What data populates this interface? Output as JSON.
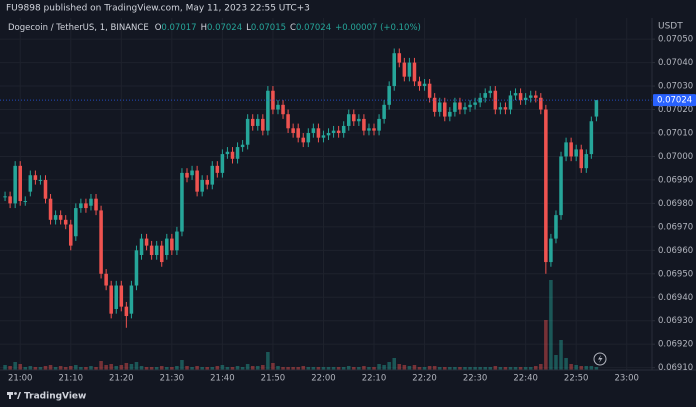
{
  "header": "FU9898 published on TradingView.com, May 11, 2023 22:55 UTC+3",
  "footer": "TradingView",
  "chart_data": {
    "type": "candlestick",
    "title": "Dogecoin / TetherUS, 1, BINANCE",
    "legend": {
      "open_label": "O",
      "high_label": "H",
      "low_label": "L",
      "close_label": "C",
      "change": "+0.00007 (+0.10%)"
    },
    "currency": "USDT",
    "up_color": "#26a69a",
    "down_color": "#ef5350",
    "grid": true,
    "x": [
      "20:57",
      "20:58",
      "20:59",
      "21:00",
      "21:01",
      "21:02",
      "21:03",
      "21:04",
      "21:05",
      "21:06",
      "21:07",
      "21:08",
      "21:09",
      "21:10",
      "21:11",
      "21:12",
      "21:13",
      "21:14",
      "21:15",
      "21:16",
      "21:17",
      "21:18",
      "21:19",
      "21:20",
      "21:21",
      "21:22",
      "21:23",
      "21:24",
      "21:25",
      "21:26",
      "21:27",
      "21:28",
      "21:29",
      "21:30",
      "21:31",
      "21:32",
      "21:33",
      "21:34",
      "21:35",
      "21:36",
      "21:37",
      "21:38",
      "21:39",
      "21:40",
      "21:41",
      "21:42",
      "21:43",
      "21:44",
      "21:45",
      "21:46",
      "21:47",
      "21:48",
      "21:49",
      "21:50",
      "21:51",
      "21:52",
      "21:53",
      "21:54",
      "21:55",
      "21:56",
      "21:57",
      "21:58",
      "21:59",
      "22:00",
      "22:01",
      "22:02",
      "22:03",
      "22:04",
      "22:05",
      "22:06",
      "22:07",
      "22:08",
      "22:09",
      "22:10",
      "22:11",
      "22:12",
      "22:13",
      "22:14",
      "22:15",
      "22:16",
      "22:17",
      "22:18",
      "22:19",
      "22:20",
      "22:21",
      "22:22",
      "22:23",
      "22:24",
      "22:25",
      "22:26",
      "22:27",
      "22:28",
      "22:29",
      "22:30",
      "22:31",
      "22:32",
      "22:33",
      "22:34",
      "22:35",
      "22:36",
      "22:37",
      "22:38",
      "22:39",
      "22:40",
      "22:41",
      "22:42",
      "22:43",
      "22:44",
      "22:45",
      "22:46",
      "22:47",
      "22:48",
      "22:49",
      "22:50",
      "22:51",
      "22:52",
      "22:53",
      "22:54"
    ],
    "open": [
      0.06983,
      0.06983,
      0.0698,
      0.06996,
      0.06981,
      0.06985,
      0.06992,
      0.0699,
      0.0699,
      0.06982,
      0.06973,
      0.06975,
      0.06973,
      0.06971,
      0.06966,
      0.06978,
      0.0698,
      0.06979,
      0.06982,
      0.06977,
      0.0695,
      0.06945,
      0.06935,
      0.06945,
      0.06936,
      0.06933,
      0.06945,
      0.06958,
      0.06965,
      0.06962,
      0.06958,
      0.06962,
      0.06958,
      0.06965,
      0.0696,
      0.06968,
      0.06993,
      0.06992,
      0.06994,
      0.06985,
      0.0699,
      0.06988,
      0.06996,
      0.06993,
      0.07001,
      0.07002,
      0.06999,
      0.07004,
      0.07005,
      0.07016,
      0.07013,
      0.07016,
      0.07011,
      0.07028,
      0.0702,
      0.07022,
      0.07018,
      0.07012,
      0.07012,
      0.07008,
      0.07006,
      0.0701,
      0.07012,
      0.07008,
      0.07009,
      0.0701,
      0.07011,
      0.0701,
      0.07013,
      0.07018,
      0.07015,
      0.07016,
      0.07011,
      0.07012,
      0.07011,
      0.07016,
      0.07022,
      0.0703,
      0.07044,
      0.0704,
      0.07034,
      0.0704,
      0.07032,
      0.0703,
      0.07031,
      0.07025,
      0.07019,
      0.07023,
      0.07017,
      0.07019,
      0.07023,
      0.0702,
      0.07021,
      0.07022,
      0.07023,
      0.07025,
      0.07027,
      0.07028,
      0.0702,
      0.07021,
      0.0702,
      0.07026,
      0.07027,
      0.07024,
      0.07025,
      0.07026,
      0.07025,
      0.0702,
      0.06955,
      0.06965,
      0.06975,
      0.07,
      0.07006,
      0.07,
      0.07003,
      0.06995,
      0.07001,
      0.07017
    ],
    "high": [
      0.06985,
      0.06985,
      0.06998,
      0.06998,
      0.06983,
      0.06994,
      0.06994,
      0.06992,
      0.06992,
      0.06984,
      0.06977,
      0.06977,
      0.06975,
      0.06973,
      0.0698,
      0.06982,
      0.06982,
      0.06984,
      0.06984,
      0.06979,
      0.06952,
      0.06947,
      0.06947,
      0.06947,
      0.06938,
      0.06947,
      0.06962,
      0.06967,
      0.06967,
      0.06964,
      0.06964,
      0.06964,
      0.06967,
      0.06967,
      0.0697,
      0.06995,
      0.06995,
      0.06996,
      0.06996,
      0.06992,
      0.06992,
      0.06998,
      0.06998,
      0.07003,
      0.07004,
      0.07004,
      0.07006,
      0.07007,
      0.07018,
      0.07018,
      0.07018,
      0.07018,
      0.0703,
      0.0703,
      0.07024,
      0.07024,
      0.0702,
      0.07014,
      0.07014,
      0.0701,
      0.07012,
      0.07014,
      0.07014,
      0.07011,
      0.07012,
      0.07013,
      0.07013,
      0.07015,
      0.0702,
      0.0702,
      0.07018,
      0.07018,
      0.07014,
      0.07014,
      0.07018,
      0.07024,
      0.07032,
      0.07046,
      0.07046,
      0.07042,
      0.07042,
      0.07042,
      0.07034,
      0.07033,
      0.07033,
      0.07027,
      0.07025,
      0.07025,
      0.07021,
      0.07025,
      0.07025,
      0.07023,
      0.07024,
      0.07025,
      0.07027,
      0.07029,
      0.0703,
      0.0703,
      0.07023,
      0.07023,
      0.07028,
      0.07029,
      0.07029,
      0.07027,
      0.07028,
      0.07028,
      0.07027,
      0.07022,
      0.06967,
      0.06977,
      0.07002,
      0.07008,
      0.07008,
      0.07005,
      0.07005,
      0.07003,
      0.07017,
      0.07024
    ],
    "low": [
      0.06981,
      0.06978,
      0.06978,
      0.06979,
      0.06979,
      0.06983,
      0.06988,
      0.06988,
      0.0698,
      0.06971,
      0.06971,
      0.06971,
      0.06969,
      0.0696,
      0.06964,
      0.06976,
      0.06976,
      0.06977,
      0.06975,
      0.06948,
      0.06943,
      0.06931,
      0.06933,
      0.06934,
      0.06927,
      0.06931,
      0.06943,
      0.06956,
      0.0696,
      0.06956,
      0.06956,
      0.06953,
      0.06956,
      0.06958,
      0.06958,
      0.06966,
      0.06989,
      0.0699,
      0.06983,
      0.06983,
      0.06986,
      0.06986,
      0.06991,
      0.06991,
      0.06999,
      0.06997,
      0.06997,
      0.07002,
      0.07003,
      0.07011,
      0.07011,
      0.07009,
      0.07009,
      0.07018,
      0.07018,
      0.07016,
      0.0701,
      0.07008,
      0.07006,
      0.07004,
      0.07004,
      0.07008,
      0.07006,
      0.07006,
      0.07007,
      0.07008,
      0.07008,
      0.07008,
      0.07011,
      0.07013,
      0.07013,
      0.07009,
      0.07009,
      0.07009,
      0.07009,
      0.07014,
      0.0702,
      0.07028,
      0.07038,
      0.07032,
      0.07032,
      0.0703,
      0.07028,
      0.07028,
      0.07023,
      0.07017,
      0.07017,
      0.07015,
      0.07015,
      0.07017,
      0.07018,
      0.07018,
      0.07019,
      0.0702,
      0.07021,
      0.07023,
      0.07025,
      0.07018,
      0.07018,
      0.07018,
      0.07018,
      0.07024,
      0.07022,
      0.07022,
      0.07023,
      0.07023,
      0.07018,
      0.0695,
      0.06953,
      0.06963,
      0.06973,
      0.06998,
      0.06998,
      0.06998,
      0.06993,
      0.06993,
      0.06999,
      0.07015
    ],
    "close": [
      0.06983,
      0.0698,
      0.06996,
      0.06981,
      0.06981,
      0.06992,
      0.0699,
      0.0699,
      0.06982,
      0.06973,
      0.06975,
      0.06973,
      0.06971,
      0.06962,
      0.06978,
      0.0698,
      0.06978,
      0.06982,
      0.06977,
      0.0695,
      0.06945,
      0.06933,
      0.06945,
      0.06936,
      0.06932,
      0.06945,
      0.0696,
      0.06965,
      0.06962,
      0.06958,
      0.06962,
      0.06955,
      0.06965,
      0.0696,
      0.06968,
      0.06993,
      0.06991,
      0.06994,
      0.06985,
      0.0699,
      0.06988,
      0.06996,
      0.06993,
      0.07001,
      0.07002,
      0.06999,
      0.07004,
      0.07005,
      0.07016,
      0.07013,
      0.07016,
      0.07011,
      0.07028,
      0.0702,
      0.07022,
      0.07018,
      0.07012,
      0.0701,
      0.07008,
      0.07006,
      0.0701,
      0.07012,
      0.07008,
      0.07009,
      0.0701,
      0.07011,
      0.0701,
      0.07013,
      0.07018,
      0.07015,
      0.07016,
      0.07011,
      0.07012,
      0.07011,
      0.07016,
      0.07022,
      0.0703,
      0.07044,
      0.0704,
      0.07034,
      0.0704,
      0.07032,
      0.0703,
      0.07031,
      0.07025,
      0.07019,
      0.07023,
      0.07017,
      0.07019,
      0.07023,
      0.0702,
      0.07021,
      0.07022,
      0.07023,
      0.07025,
      0.07027,
      0.07028,
      0.0702,
      0.07021,
      0.0702,
      0.07026,
      0.07027,
      0.07024,
      0.07025,
      0.07026,
      0.07025,
      0.0702,
      0.06955,
      0.06965,
      0.06975,
      0.07,
      0.07006,
      0.07,
      0.07003,
      0.06995,
      0.07001,
      0.07015,
      0.07024
    ],
    "volume": [
      5,
      4,
      8,
      6,
      3,
      4,
      3,
      3,
      4,
      5,
      3,
      4,
      3,
      4,
      5,
      3,
      3,
      4,
      3,
      9,
      5,
      6,
      4,
      5,
      7,
      6,
      8,
      4,
      3,
      3,
      3,
      4,
      3,
      3,
      4,
      10,
      4,
      3,
      4,
      3,
      3,
      3,
      4,
      5,
      3,
      3,
      4,
      3,
      6,
      4,
      4,
      5,
      18,
      7,
      4,
      3,
      3,
      3,
      3,
      4,
      3,
      3,
      3,
      3,
      3,
      3,
      3,
      3,
      4,
      3,
      3,
      4,
      3,
      3,
      6,
      5,
      8,
      12,
      6,
      5,
      4,
      5,
      3,
      3,
      4,
      4,
      3,
      3,
      3,
      3,
      3,
      3,
      3,
      3,
      3,
      3,
      3,
      4,
      3,
      3,
      3,
      3,
      3,
      3,
      3,
      4,
      6,
      50,
      90,
      15,
      30,
      12,
      6,
      5,
      4,
      4,
      4,
      3
    ],
    "xlim": [
      "20:56",
      "23:05"
    ],
    "xticks": [
      "21:00",
      "21:10",
      "21:20",
      "21:30",
      "21:40",
      "21:50",
      "22:00",
      "22:10",
      "22:20",
      "22:30",
      "22:40",
      "22:50",
      "23:00"
    ],
    "ylim": [
      0.06909,
      0.07059
    ],
    "yticks": [
      {
        "value": 0.0691,
        "label": "0.06910"
      },
      {
        "value": 0.0692,
        "label": "0.06920"
      },
      {
        "value": 0.0693,
        "label": "0.06930"
      },
      {
        "value": 0.0694,
        "label": "0.06940"
      },
      {
        "value": 0.0695,
        "label": "0.06950"
      },
      {
        "value": 0.0696,
        "label": "0.06960"
      },
      {
        "value": 0.0697,
        "label": "0.06970"
      },
      {
        "value": 0.0698,
        "label": "0.06980"
      },
      {
        "value": 0.0699,
        "label": "0.06990"
      },
      {
        "value": 0.07,
        "label": "0.07000"
      },
      {
        "value": 0.0701,
        "label": "0.07010"
      },
      {
        "value": 0.0702,
        "label": "0.07020"
      },
      {
        "value": 0.0703,
        "label": "0.07030"
      },
      {
        "value": 0.0704,
        "label": "0.07040"
      },
      {
        "value": 0.0705,
        "label": "0.07050"
      }
    ]
  }
}
